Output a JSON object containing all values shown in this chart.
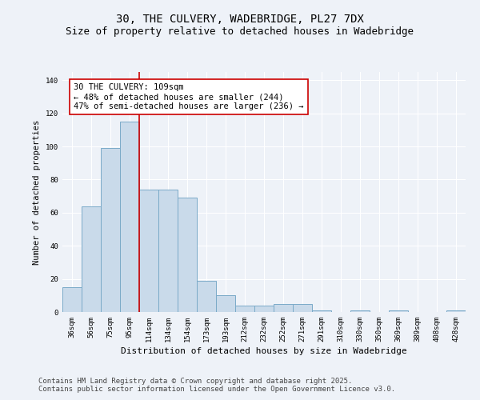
{
  "title_line1": "30, THE CULVERY, WADEBRIDGE, PL27 7DX",
  "title_line2": "Size of property relative to detached houses in Wadebridge",
  "xlabel": "Distribution of detached houses by size in Wadebridge",
  "ylabel": "Number of detached properties",
  "categories": [
    "36sqm",
    "56sqm",
    "75sqm",
    "95sqm",
    "114sqm",
    "134sqm",
    "154sqm",
    "173sqm",
    "193sqm",
    "212sqm",
    "232sqm",
    "252sqm",
    "271sqm",
    "291sqm",
    "310sqm",
    "330sqm",
    "350sqm",
    "369sqm",
    "389sqm",
    "408sqm",
    "428sqm"
  ],
  "values": [
    15,
    64,
    99,
    115,
    74,
    74,
    69,
    19,
    10,
    4,
    4,
    5,
    5,
    1,
    0,
    1,
    0,
    1,
    0,
    0,
    1
  ],
  "bar_color": "#c9daea",
  "bar_edge_color": "#7aaac8",
  "vline_x": 3.5,
  "vline_color": "#cc0000",
  "annotation_text": "30 THE CULVERY: 109sqm\n← 48% of detached houses are smaller (244)\n47% of semi-detached houses are larger (236) →",
  "annotation_box_color": "white",
  "annotation_box_edge": "#cc0000",
  "ylim": [
    0,
    145
  ],
  "yticks": [
    0,
    20,
    40,
    60,
    80,
    100,
    120,
    140
  ],
  "footer_line1": "Contains HM Land Registry data © Crown copyright and database right 2025.",
  "footer_line2": "Contains public sector information licensed under the Open Government Licence v3.0.",
  "bg_color": "#eef2f8",
  "plot_bg_color": "#eef2f8",
  "grid_color": "#ffffff",
  "title_fontsize": 10,
  "subtitle_fontsize": 9,
  "footer_fontsize": 6.5,
  "annotation_fontsize": 7.5,
  "xlabel_fontsize": 8,
  "ylabel_fontsize": 7.5,
  "tick_fontsize": 6.5
}
